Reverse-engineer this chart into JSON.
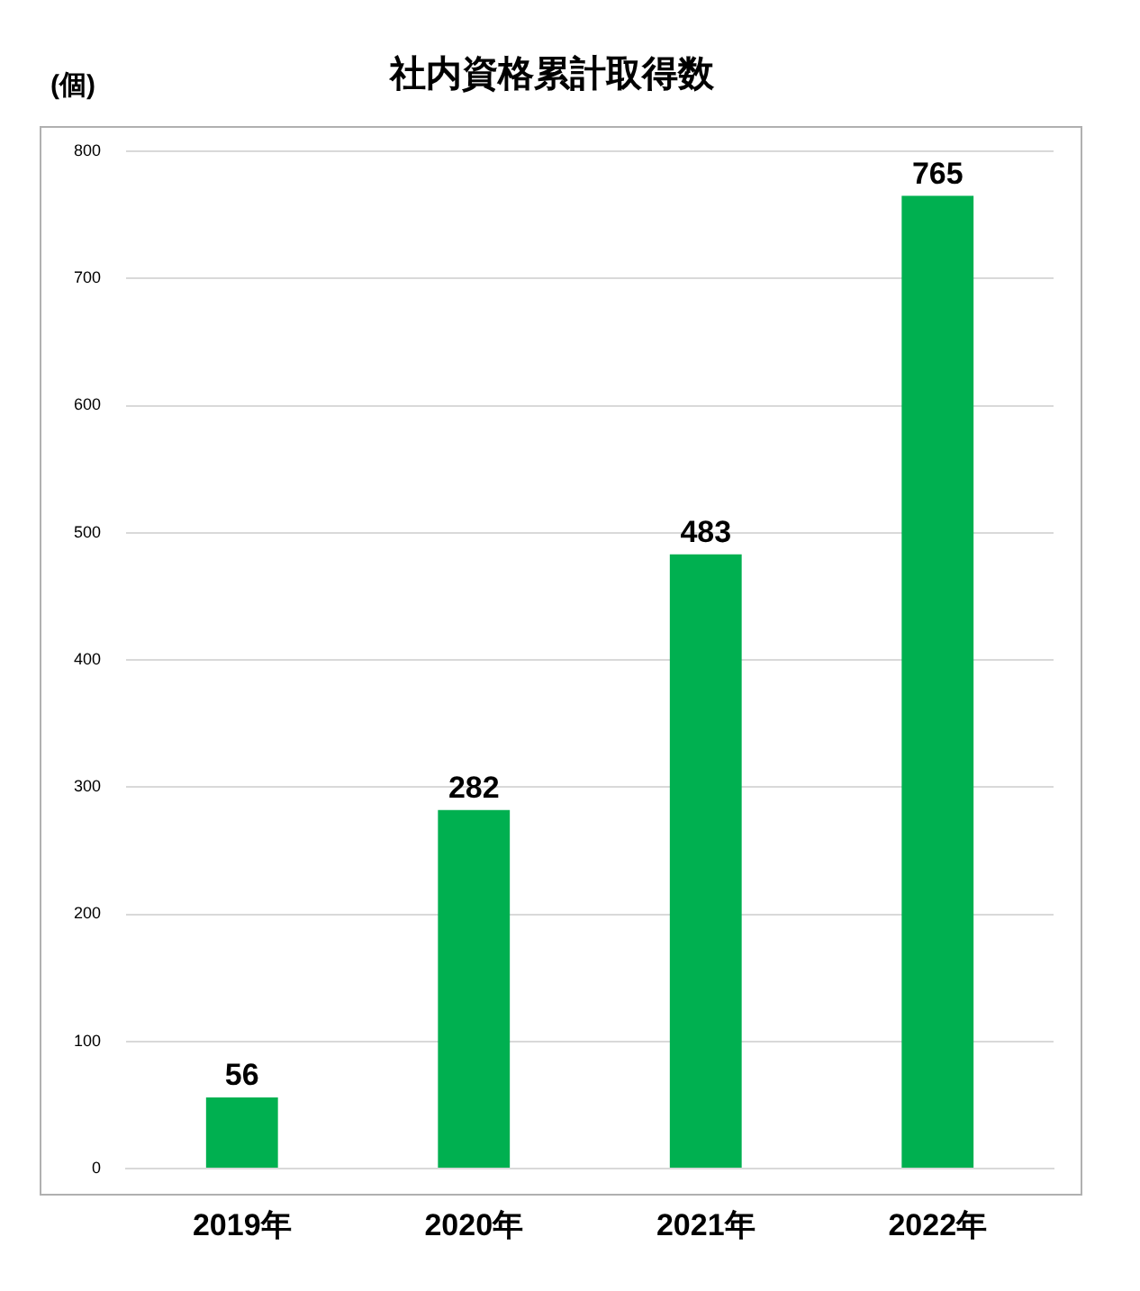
{
  "chart_data": {
    "type": "bar",
    "title": "社内資格累計取得数",
    "ylabel": "(個)",
    "categories": [
      "2019年",
      "2020年",
      "2021年",
      "2022年"
    ],
    "values": [
      56,
      282,
      483,
      765
    ],
    "color": "#00b050",
    "ylim": [
      0,
      800
    ],
    "yticks": [
      0,
      100,
      200,
      300,
      400,
      500,
      600,
      700,
      800
    ],
    "grid": "y",
    "data_labels": true,
    "legend": false
  }
}
